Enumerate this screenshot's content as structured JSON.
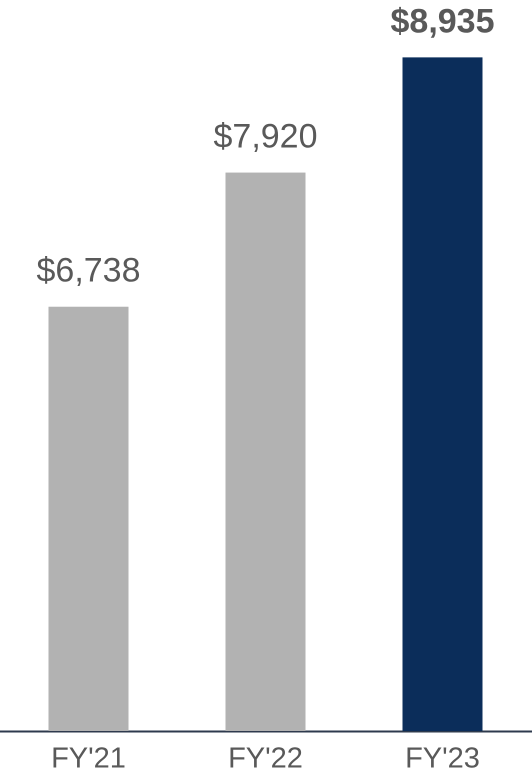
{
  "chart_data": {
    "type": "bar",
    "categories": [
      "FY'21",
      "FY'22",
      "FY'23"
    ],
    "values": [
      6738,
      7920,
      8935
    ],
    "value_labels": [
      "$6,738",
      "$7,920",
      "$8,935"
    ],
    "colors": [
      "#b2b2b2",
      "#b2b2b2",
      "#0b2d5a"
    ],
    "ylim": [
      3000,
      9000
    ]
  }
}
